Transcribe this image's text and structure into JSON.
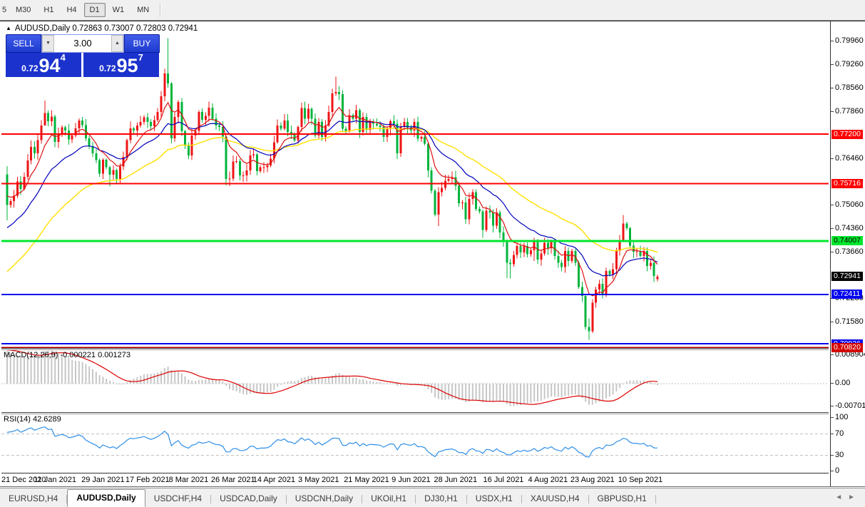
{
  "toolbar": {
    "timeframes": [
      {
        "label": "5",
        "cut": true
      },
      {
        "label": "M30"
      },
      {
        "label": "H1"
      },
      {
        "label": "H4"
      },
      {
        "label": "D1",
        "active": true
      },
      {
        "label": "W1"
      },
      {
        "label": "MN"
      }
    ]
  },
  "window": {
    "collapse_icon": "▲",
    "symbol_header": "AUDUSD,Daily 0.72863 0.73007 0.72803 0.72941",
    "trade_panel": {
      "sell_label": "SELL",
      "buy_label": "BUY",
      "volume": "3.00",
      "spin_down_icon": "▼",
      "spin_up_icon": "▲",
      "sell_price": {
        "prefix": "0.72",
        "big": "94",
        "sup": "4"
      },
      "buy_price": {
        "prefix": "0.72",
        "big": "95",
        "sup": "7"
      }
    }
  },
  "panes": {
    "macd_label": "MACD(12,26,9) -0.000221 0.001273",
    "rsi_label": "RSI(14) 42.6289"
  },
  "price_axis": {
    "ticks": [
      {
        "label": "0.79960",
        "price": 0.7996
      },
      {
        "label": "0.79260",
        "price": 0.7926
      },
      {
        "label": "0.78560",
        "price": 0.7856
      },
      {
        "label": "0.77860",
        "price": 0.7786
      },
      {
        "label": "0.76460",
        "price": 0.7646
      },
      {
        "label": "0.75060",
        "price": 0.7506
      },
      {
        "label": "0.74360",
        "price": 0.7436
      },
      {
        "label": "0.73660",
        "price": 0.7366
      },
      {
        "label": "0.72280",
        "price": 0.7228
      },
      {
        "label": "0.71580",
        "price": 0.7158
      }
    ],
    "badges": [
      {
        "label": "0.77200",
        "price": 0.772,
        "bg": "#ff0000",
        "fg": "#ffffff"
      },
      {
        "label": "0.75716",
        "price": 0.75716,
        "bg": "#ff0000",
        "fg": "#ffffff"
      },
      {
        "label": "0.74007",
        "price": 0.74007,
        "bg": "#00e62e",
        "fg": "#000000"
      },
      {
        "label": "0.72941",
        "price": 0.72941,
        "bg": "#000000",
        "fg": "#ffffff"
      },
      {
        "label": "0.72411",
        "price": 0.72411,
        "bg": "#0000ee",
        "fg": "#ffffff"
      },
      {
        "label": "0.70936",
        "price": 0.70936,
        "bg": "#0000ee",
        "fg": "#ffffff"
      },
      {
        "label": "0.70820",
        "price": 0.7082,
        "bg": "#d40000",
        "fg": "#ffffff"
      }
    ],
    "macd_ticks": [
      {
        "label": "0.008904",
        "value": 0.008904
      },
      {
        "label": "0.00",
        "value": 0.0
      },
      {
        "label": "-0.007013",
        "value": -0.007013
      }
    ],
    "rsi_ticks": [
      {
        "label": "100",
        "value": 100
      },
      {
        "label": "70",
        "value": 70
      },
      {
        "label": "30",
        "value": 30
      },
      {
        "label": "0",
        "value": 0
      }
    ]
  },
  "date_axis": [
    {
      "text": "21 Dec 2020",
      "bar": 0
    },
    {
      "text": "11 Jan 2021",
      "bar": 14
    },
    {
      "text": "29 Jan 2021",
      "bar": 28
    },
    {
      "text": "17 Feb 2021",
      "bar": 41
    },
    {
      "text": "8 Mar 2021",
      "bar": 53
    },
    {
      "text": "26 Mar 2021",
      "bar": 66
    },
    {
      "text": "14 Apr 2021",
      "bar": 78
    },
    {
      "text": "3 May 2021",
      "bar": 91
    },
    {
      "text": "21 May 2021",
      "bar": 105
    },
    {
      "text": "9 Jun 2021",
      "bar": 118
    },
    {
      "text": "28 Jun 2021",
      "bar": 131
    },
    {
      "text": "16 Jul 2021",
      "bar": 145
    },
    {
      "text": "4 Aug 2021",
      "bar": 158
    },
    {
      "text": "23 Aug 2021",
      "bar": 171
    },
    {
      "text": "10 Sep 2021",
      "bar": 185
    }
  ],
  "tabs": {
    "items": [
      {
        "label": "EURUSD,H4"
      },
      {
        "label": "AUDUSD,Daily",
        "active": true
      },
      {
        "label": "USDCHF,H4"
      },
      {
        "label": "USDCAD,Daily"
      },
      {
        "label": "USDCNH,Daily"
      },
      {
        "label": "UKOil,H1"
      },
      {
        "label": "DJ30,H1"
      },
      {
        "label": "USDX,H1"
      },
      {
        "label": "XAUUSD,H4"
      },
      {
        "label": "GBPUSD,H1"
      }
    ],
    "scroll_left_icon": "◄",
    "scroll_right_icon": "►"
  },
  "colors": {
    "bull": "#ee1515",
    "bear": "#00b43c",
    "ma_fast": "#dd1111",
    "ma_mid": "#0000bb",
    "ma_slow": "#ffe000",
    "macd_hist": "#c6c6c6",
    "macd_signal": "#dd0000",
    "rsi_line": "#2e8fe8",
    "grid_dash": "#c0c0c0"
  },
  "chart_data": {
    "type": "candlestick",
    "symbol": "AUDUSD",
    "timeframe": "Daily",
    "current_bar": {
      "open": 0.72863,
      "high": 0.73007,
      "low": 0.72803,
      "close": 0.72941
    },
    "ylim": [
      0.7082,
      0.8054
    ],
    "macd_ylim": [
      -0.0075,
      0.0089
    ],
    "rsi_levels": [
      70,
      30
    ],
    "hlines": [
      {
        "price": 0.772,
        "color": "#ff0000",
        "w": 2
      },
      {
        "price": 0.75716,
        "color": "#ff0000",
        "w": 2
      },
      {
        "price": 0.74007,
        "color": "#00e62e",
        "w": 3
      },
      {
        "price": 0.72411,
        "color": "#0000ee",
        "w": 2
      },
      {
        "price": 0.70936,
        "color": "#0000ee",
        "w": 2
      },
      {
        "price": 0.7082,
        "color": "#c00000",
        "w": 2
      }
    ],
    "first_open": 0.76,
    "last_open": 0.72863,
    "warmup": [
      0.702,
      0.705,
      0.708,
      0.7105,
      0.713,
      0.716,
      0.7185,
      0.721,
      0.7235,
      0.726,
      0.7262,
      0.728,
      0.73,
      0.7318,
      0.7335,
      0.7355,
      0.7375,
      0.7392,
      0.741,
      0.743,
      0.745,
      0.7468,
      0.7488,
      0.7505,
      0.752,
      0.7535,
      0.7552,
      0.757,
      0.7585,
      0.76
    ],
    "closes": [
      0.7508,
      0.752,
      0.7536,
      0.7578,
      0.7556,
      0.7592,
      0.7641,
      0.7682,
      0.7662,
      0.7702,
      0.7746,
      0.7783,
      0.7758,
      0.7772,
      0.7697,
      0.7722,
      0.774,
      0.7731,
      0.7704,
      0.7716,
      0.7737,
      0.7761,
      0.7747,
      0.7707,
      0.7684,
      0.7662,
      0.7642,
      0.7602,
      0.7643,
      0.7621,
      0.7599,
      0.7612,
      0.7586,
      0.7623,
      0.7652,
      0.7702,
      0.7737,
      0.7731,
      0.7746,
      0.7756,
      0.777,
      0.7756,
      0.7743,
      0.7762,
      0.7786,
      0.7833,
      0.7901,
      0.7871,
      0.7707,
      0.7771,
      0.7816,
      0.7728,
      0.7686,
      0.7656,
      0.7716,
      0.773,
      0.7786,
      0.7763,
      0.7774,
      0.7799,
      0.7766,
      0.7746,
      0.7741,
      0.7713,
      0.7586,
      0.7587,
      0.7638,
      0.7639,
      0.7596,
      0.7596,
      0.7611,
      0.7656,
      0.7659,
      0.7609,
      0.7621,
      0.7621,
      0.7626,
      0.7646,
      0.7696,
      0.7746,
      0.7736,
      0.7761,
      0.7726,
      0.7721,
      0.7701,
      0.7741,
      0.7798,
      0.7766,
      0.7796,
      0.7766,
      0.7716,
      0.7756,
      0.7711,
      0.7746,
      0.7786,
      0.7841,
      0.7846,
      0.7839,
      0.7736,
      0.7729,
      0.7776,
      0.7766,
      0.7791,
      0.7726,
      0.7771,
      0.7733,
      0.7756,
      0.7751,
      0.7746,
      0.7741,
      0.7711,
      0.7736,
      0.7758,
      0.7751,
      0.7663,
      0.7741,
      0.7756,
      0.7739,
      0.7731,
      0.7756,
      0.7706,
      0.7711,
      0.7691,
      0.7611,
      0.7551,
      0.7479,
      0.7546,
      0.7559,
      0.7581,
      0.7586,
      0.7591,
      0.7566,
      0.7513,
      0.7516,
      0.7466,
      0.7526,
      0.7546,
      0.7496,
      0.7489,
      0.7434,
      0.7491,
      0.7486,
      0.7446,
      0.7486,
      0.7426,
      0.7401,
      0.7336,
      0.7331,
      0.7359,
      0.7386,
      0.7366,
      0.7386,
      0.7361,
      0.7373,
      0.7398,
      0.7345,
      0.7363,
      0.7395,
      0.7379,
      0.7401,
      0.7356,
      0.7336,
      0.7323,
      0.7371,
      0.7341,
      0.7371,
      0.7336,
      0.7263,
      0.7236,
      0.7144,
      0.7131,
      0.7216,
      0.7256,
      0.7273,
      0.7239,
      0.7311,
      0.7301,
      0.7316,
      0.7371,
      0.7401,
      0.7453,
      0.7439,
      0.7387,
      0.7369,
      0.737,
      0.7356,
      0.7371,
      0.7326,
      0.7336,
      0.7296,
      0.72941
    ],
    "wicks": {
      "0": [
        0.7624,
        0.7462
      ],
      "11": [
        0.782,
        0.7752
      ],
      "27": [
        0.7648,
        0.7592
      ],
      "30": [
        0.7625,
        0.7563
      ],
      "47": [
        0.8007,
        0.7858
      ],
      "48": [
        0.7876,
        0.7692
      ],
      "64": [
        0.7716,
        0.7567
      ],
      "65": [
        0.7608,
        0.7564
      ],
      "96": [
        0.7891,
        0.7834
      ],
      "114": [
        0.7764,
        0.7645
      ],
      "125": [
        0.7556,
        0.7474
      ],
      "126": [
        0.7561,
        0.7445
      ],
      "139": [
        0.7494,
        0.741
      ],
      "146": [
        0.7405,
        0.729
      ],
      "147": [
        0.7347,
        0.7289
      ],
      "154": [
        0.741,
        0.7341
      ],
      "169": [
        0.7242,
        0.7135
      ],
      "170": [
        0.7169,
        0.7106
      ],
      "180": [
        0.7478,
        0.7402
      ],
      "190": [
        0.73007,
        0.72803
      ]
    }
  }
}
